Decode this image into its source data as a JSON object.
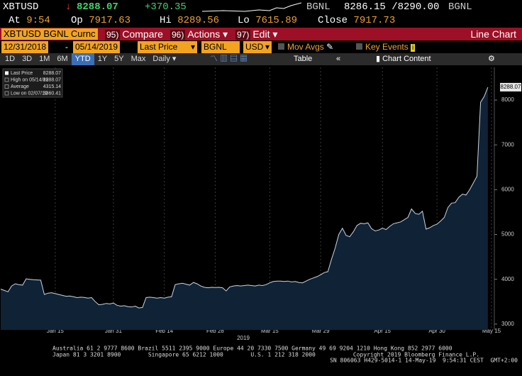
{
  "header": {
    "ticker": "XBTUSD",
    "arrow": "↓",
    "last": "8288.07",
    "change": "+370.35",
    "source": "BGNL",
    "bid_ask": "8286.15 /8290.00",
    "source2": "BGNL"
  },
  "quote_row": [
    {
      "label": "At",
      "value": "9:54"
    },
    {
      "label": "Op",
      "value": "7917.63"
    },
    {
      "label": "Hi",
      "value": "8289.56"
    },
    {
      "label": "Lo",
      "value": "7615.89"
    },
    {
      "label": "Close",
      "value": "7917.73"
    }
  ],
  "menu": {
    "security": "XBTUSD BGNL Curnc",
    "buttons": [
      {
        "num": "95)",
        "label": "Compare"
      },
      {
        "num": "96)",
        "label": "Actions"
      },
      {
        "num": "97)",
        "label": "Edit"
      }
    ],
    "chart_type": "Line Chart"
  },
  "controls": {
    "start": "12/31/2018",
    "dash": "-",
    "end": "05/14/2019",
    "field": "Last Price",
    "source": "BGNL",
    "currency": "USD",
    "mov_avgs": "Mov Avgs",
    "key_events": "Key Events"
  },
  "tabs": {
    "periods": [
      "1D",
      "3D",
      "1M",
      "6M",
      "YTD",
      "1Y",
      "5Y",
      "Max"
    ],
    "frequency": "Daily",
    "table": "Table",
    "chart_content": "Chart Content"
  },
  "chart_data": {
    "type": "area",
    "legend": [
      {
        "label": "Last Price",
        "value": "8288.07"
      },
      {
        "label": "High on 05/14/19",
        "value": "8288.07"
      },
      {
        "label": "Average",
        "value": "4315.14"
      },
      {
        "label": "Low on 02/07/19",
        "value": "3360.41"
      }
    ],
    "last_price_tag": "8288.07",
    "x_axis_label": "2019",
    "categories": [
      null,
      null,
      null,
      null,
      null,
      null,
      null,
      null,
      null,
      null,
      null,
      null,
      null,
      null,
      null,
      "Jan 15",
      null,
      null,
      null,
      null,
      null,
      null,
      null,
      null,
      null,
      null,
      null,
      null,
      null,
      null,
      null,
      "Jan 31",
      null,
      null,
      null,
      null,
      null,
      null,
      null,
      null,
      null,
      null,
      null,
      null,
      null,
      "Feb 14",
      null,
      null,
      null,
      null,
      null,
      null,
      null,
      null,
      null,
      null,
      null,
      null,
      null,
      "Feb 28",
      null,
      null,
      null,
      null,
      null,
      null,
      null,
      null,
      null,
      null,
      null,
      null,
      null,
      null,
      "Mar 15",
      null,
      null,
      null,
      null,
      null,
      null,
      null,
      null,
      null,
      null,
      null,
      null,
      null,
      "Mar 29",
      null,
      null,
      null,
      null,
      null,
      null,
      null,
      null,
      null,
      null,
      null,
      null,
      null,
      null,
      null,
      null,
      "Apr 15",
      null,
      null,
      null,
      null,
      null,
      null,
      null,
      null,
      null,
      null,
      null,
      null,
      null,
      null,
      "Apr 30",
      null,
      null,
      null,
      null,
      null,
      null,
      null,
      null,
      null,
      null,
      null,
      null,
      null,
      null,
      "May 15"
    ],
    "values": [
      3780,
      3750,
      3720,
      3850,
      3900,
      3880,
      3870,
      4010,
      4000,
      3990,
      3985,
      3980,
      3660,
      3690,
      3700,
      3680,
      3660,
      3640,
      3620,
      3625,
      3610,
      3590,
      3600,
      3595,
      3580,
      3590,
      3500,
      3430,
      3440,
      3460,
      3450,
      3470,
      3420,
      3400,
      3410,
      3390,
      3380,
      3400,
      3360,
      3370,
      3590,
      3600,
      3590,
      3580,
      3590,
      3580,
      3600,
      3610,
      3880,
      3900,
      3910,
      3890,
      3870,
      3930,
      3900,
      3850,
      3820,
      3810,
      3820,
      3815,
      3820,
      3810,
      3740,
      3830,
      3850,
      3860,
      3850,
      3860,
      3870,
      3860,
      3850,
      3870,
      3860,
      3880,
      3920,
      3950,
      3960,
      3960,
      3950,
      3960,
      3940,
      3950,
      3930,
      3920,
      3960,
      4000,
      4030,
      4060,
      4100,
      4150,
      4170,
      4450,
      4700,
      5000,
      5140,
      4980,
      4950,
      5060,
      5200,
      5250,
      5240,
      5260,
      5130,
      5080,
      5100,
      5140,
      5110,
      5180,
      5240,
      5260,
      5280,
      5330,
      5380,
      5570,
      5470,
      5450,
      5520,
      5120,
      5150,
      5200,
      5230,
      5300,
      5380,
      5600,
      5700,
      5710,
      5830,
      5900,
      5880,
      6000,
      6150,
      6300,
      7950,
      8080,
      8288.07,
      null
    ],
    "line_color": "#c9d6e3",
    "fill_color": "#0f2236",
    "ylim": [
      2870,
      8730
    ],
    "yticks": [
      3000,
      4000,
      5000,
      6000,
      7000,
      8000
    ],
    "grid": true
  },
  "footer": {
    "lines": [
      "Australia 61 2 9777 8600 Brazil 5511 2395 9000 Europe 44 20 7330 7500 Germany 49 69 9204 1210 Hong Kong 852 2977 6000",
      "Japan 81 3 3201 8900        Singapore 65 6212 1000        U.S. 1 212 318 2000           Copyright 2019 Bloomberg Finance L.P.",
      "SN 806063 H429-5014-1 14-May-19  9:54:31 CEST  GMT+2:00"
    ]
  }
}
